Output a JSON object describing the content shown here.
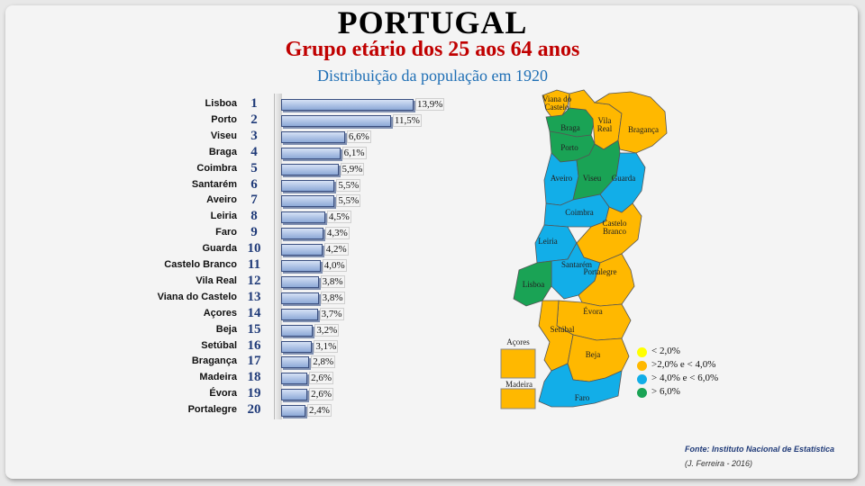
{
  "header": {
    "title": "PORTUGAL",
    "subtitle": "Grupo etário dos 25 aos 64 anos",
    "subtitle2": "Distribuição da população em 1920"
  },
  "chart_data": {
    "type": "bar",
    "orientation": "horizontal",
    "categories": [
      "Lisboa",
      "Porto",
      "Viseu",
      "Braga",
      "Coimbra",
      "Santarém",
      "Aveiro",
      "Leiria",
      "Faro",
      "Guarda",
      "Castelo Branco",
      "Vila Real",
      "Viana do Castelo",
      "Açores",
      "Beja",
      "Setúbal",
      "Bragança",
      "Madeira",
      "Évora",
      "Portalegre"
    ],
    "ranks": [
      "1",
      "2",
      "3",
      "4",
      "5",
      "6",
      "7",
      "8",
      "9",
      "10",
      "11",
      "12",
      "13",
      "14",
      "15",
      "16",
      "17",
      "18",
      "19",
      "20"
    ],
    "values": [
      13.9,
      11.5,
      6.6,
      6.1,
      5.9,
      5.5,
      5.5,
      4.5,
      4.3,
      4.2,
      4.0,
      3.8,
      3.8,
      3.7,
      3.2,
      3.1,
      2.8,
      2.6,
      2.6,
      2.4
    ],
    "value_labels": [
      "13,9%",
      "11,5%",
      "6,6%",
      "6,1%",
      "5,9%",
      "5,5%",
      "5,5%",
      "4,5%",
      "4,3%",
      "4,2%",
      "4,0%",
      "3,8%",
      "3,8%",
      "3,7%",
      "3,2%",
      "3,1%",
      "2,8%",
      "2,6%",
      "2,6%",
      "2,4%"
    ],
    "xlim": [
      0,
      14
    ],
    "grid": false
  },
  "map": {
    "districts": [
      {
        "name": "Viana do Castelo",
        "color": "#ffb800"
      },
      {
        "name": "Braga",
        "color": "#1aa355"
      },
      {
        "name": "Vila Real",
        "color": "#ffb800"
      },
      {
        "name": "Bragança",
        "color": "#ffb800"
      },
      {
        "name": "Porto",
        "color": "#1aa355"
      },
      {
        "name": "Aveiro",
        "color": "#12aee8"
      },
      {
        "name": "Viseu",
        "color": "#1aa355"
      },
      {
        "name": "Guarda",
        "color": "#12aee8"
      },
      {
        "name": "Coimbra",
        "color": "#12aee8"
      },
      {
        "name": "Castelo Branco",
        "color": "#ffb800"
      },
      {
        "name": "Leiria",
        "color": "#12aee8"
      },
      {
        "name": "Santarém",
        "color": "#12aee8"
      },
      {
        "name": "Portalegre",
        "color": "#ffb800"
      },
      {
        "name": "Lisboa",
        "color": "#1aa355"
      },
      {
        "name": "Évora",
        "color": "#ffb800"
      },
      {
        "name": "Setúbal",
        "color": "#ffb800"
      },
      {
        "name": "Beja",
        "color": "#ffb800"
      },
      {
        "name": "Faro",
        "color": "#12aee8"
      }
    ],
    "islands": [
      {
        "name": "Açores",
        "color": "#ffb800"
      },
      {
        "name": "Madeira",
        "color": "#ffb800"
      }
    ]
  },
  "legend": [
    {
      "label": "< 2,0%",
      "color": "#ffff00"
    },
    {
      "label": ">2,0%  e < 4,0%",
      "color": "#ffb800"
    },
    {
      "label": "> 4,0%  e < 6,0%",
      "color": "#12aee8"
    },
    {
      "label": "> 6,0%",
      "color": "#1aa355"
    }
  ],
  "footer": {
    "source": "Fonte: Instituto Nacional de Estatística",
    "author": "(J. Ferreira - 2016)"
  }
}
